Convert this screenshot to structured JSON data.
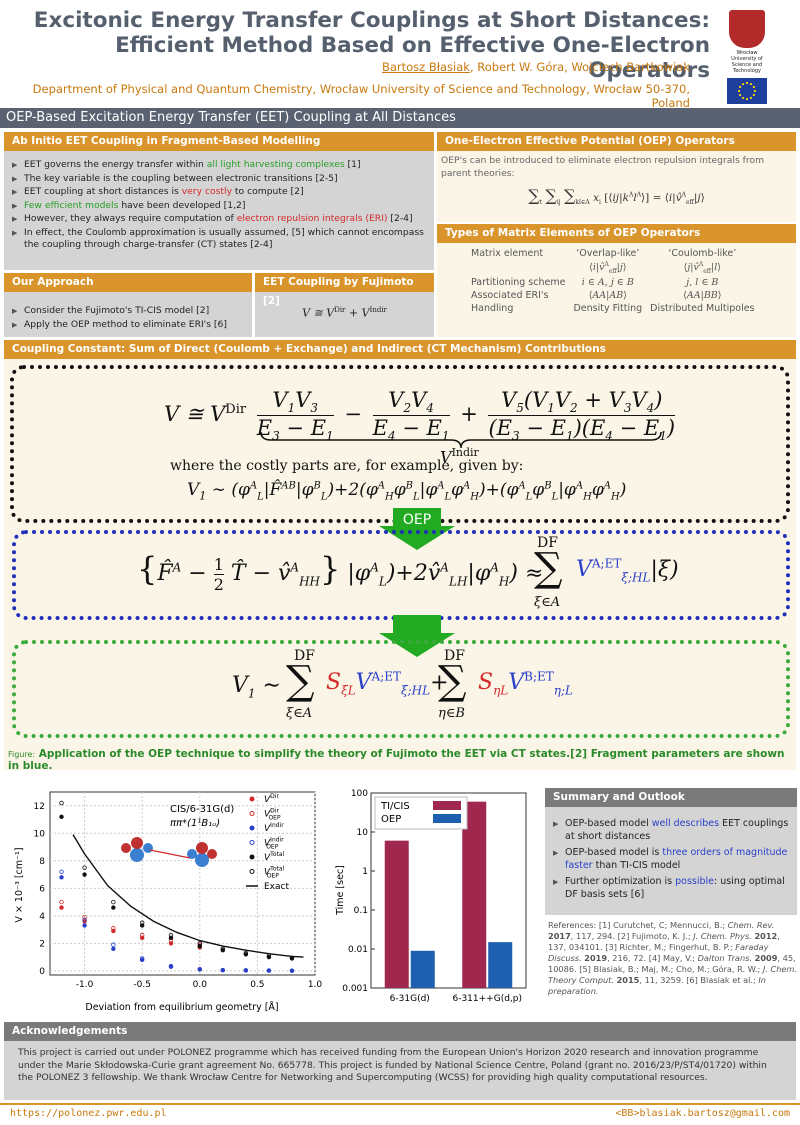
{
  "header": {
    "title_line1": "Excitonic Energy Transfer Couplings at Short Distances:",
    "title_line2": "Efficient Method Based on Effective One-Electron Operators",
    "author_first": "Bartosz Błasiak",
    "authors_rest": ", Robert W. Góra, Wojciech Bartkowiak",
    "affiliation": "Department of Physical and Quantum Chemistry, Wrocław University of Science and Technology, Wrocław 50-370, Poland",
    "logo_text": "Wrocław University of Science and Technology"
  },
  "banner": "OEP-Based Excitation Energy Transfer (EET) Coupling at All Distances",
  "ab_initio": {
    "title": "Ab Initio EET Coupling in Fragment-Based Modelling",
    "items": [
      {
        "pre": "EET governs the energy transfer within ",
        "hl": "all light harvesting complexes",
        "post": " [1]",
        "color": "#2aa02a"
      },
      {
        "pre": "The key variable is the coupling between electronic transitions [2-5]",
        "hl": "",
        "post": "",
        "color": ""
      },
      {
        "pre": "EET coupling at short distances is ",
        "hl": "very costly",
        "post": " to compute [2]",
        "color": "#d22a2a"
      },
      {
        "pre": "",
        "hl": "Few efficient models",
        "post": " have been developed [1,2]",
        "color": "#2aa02a"
      },
      {
        "pre": "However, they always require computation of ",
        "hl": "electron repulsion integrals (ERI)",
        "post": " [2-4]",
        "color": "#d22a2a"
      },
      {
        "pre": "In effect, the Coulomb approximation is usually assumed, [5] which cannot encompass the coupling through charge-transfer (CT) states [2-4]",
        "hl": "",
        "post": "",
        "color": ""
      }
    ]
  },
  "approach": {
    "title": "Our Approach",
    "items": [
      "Consider the Fujimoto's TI-CIS model [2]",
      "Apply the OEP method to eliminate ERI's [6]"
    ]
  },
  "fujimoto": {
    "title": "EET Coupling by Fujimoto [2]"
  },
  "oep": {
    "title": "One-Electron Effective Potential (OEP) Operators",
    "text": "OEP's can be introduced to eliminate electron repulsion integrals from parent theories:"
  },
  "matrix": {
    "title": "Types of Matrix Elements of OEP Operators",
    "col1": "‘Overlap-like’",
    "col2": "‘Coulomb-like’",
    "rows": [
      {
        "label": "Matrix element"
      },
      {
        "label": "Partitioning scheme"
      },
      {
        "label": "Associated ERI's"
      },
      {
        "label": "Handling",
        "c1": "Density Fitting",
        "c2": "Distributed Multipoles"
      }
    ]
  },
  "coupling": {
    "title": "Coupling Constant: Sum of Direct (Coulomb + Exchange) and Indirect (CT Mechanism) Contributions",
    "costly_text": "where the costly parts are, for example, given by:",
    "oep_label": "OEP"
  },
  "figcap": {
    "label": "Figure:",
    "text": "Application of the OEP technique to simplify the theory of Fujimoto the EET via CT states.[2] Fragment parameters are shown in blue."
  },
  "plot1": {
    "annot1": "CIS/6-31G(d)",
    "annot2": "ππ*(1¹B₁ᵤ)",
    "xlabel": "Deviation from equilibrium geometry [Å]",
    "ylabel": "V × 10⁻³ [cm⁻¹]",
    "legend": [
      "V^Dir",
      "V^Dir_OEP",
      "V^Indir",
      "V^Indir_OEP",
      "V^Total",
      "V^Total_OEP",
      "Exact"
    ]
  },
  "plot2": {
    "ylabel": "Time [sec]",
    "legend": [
      "TI/CIS",
      "OEP"
    ],
    "categories": [
      "6-31G(d)",
      "6-311++G(d,p)"
    ]
  },
  "chart_data": [
    {
      "type": "scatter",
      "xlabel": "Deviation from equilibrium geometry [Å]",
      "ylabel": "V × 10⁻³ [cm⁻¹]",
      "xlim": [
        -1.3,
        1.0
      ],
      "ylim": [
        -0.3,
        13
      ],
      "xticks": [
        -1.0,
        -0.5,
        0.0,
        0.5,
        1.0
      ],
      "yticks": [
        0,
        2,
        4,
        6,
        8,
        10,
        12
      ],
      "legend_position": "top-right",
      "series": [
        {
          "name": "V^Dir",
          "color": "#d22a2a",
          "marker": "filled",
          "x": [
            -1.2,
            -1.0,
            -0.75,
            -0.5,
            -0.25,
            0.0
          ],
          "y": [
            4.6,
            3.6,
            2.9,
            2.4,
            2.0,
            1.7
          ]
        },
        {
          "name": "V^Dir_OEP",
          "color": "#d22a2a",
          "marker": "open",
          "x": [
            -1.2,
            -1.0,
            -0.75,
            -0.5,
            -0.25,
            0.0
          ],
          "y": [
            5.0,
            3.9,
            3.1,
            2.6,
            2.2,
            1.9
          ]
        },
        {
          "name": "V^Indir",
          "color": "#2a40c8",
          "marker": "filled",
          "x": [
            -1.2,
            -1.0,
            -0.75,
            -0.5,
            -0.25,
            0.0,
            0.2,
            0.4,
            0.6,
            0.8
          ],
          "y": [
            6.8,
            3.3,
            1.6,
            0.8,
            0.3,
            0.1,
            0.05,
            0.03,
            0.02,
            0.01
          ]
        },
        {
          "name": "V^Indir_OEP",
          "color": "#2a40c8",
          "marker": "open",
          "x": [
            -1.2,
            -1.0,
            -0.75,
            -0.5,
            -0.25,
            0.0,
            0.2,
            0.4,
            0.6,
            0.8
          ],
          "y": [
            7.2,
            3.7,
            1.9,
            0.9,
            0.35,
            0.12,
            0.06,
            0.04,
            0.02,
            0.01
          ]
        },
        {
          "name": "V^Total",
          "color": "#111111",
          "marker": "filled",
          "x": [
            -1.2,
            -1.0,
            -0.75,
            -0.5,
            -0.25,
            0.0,
            0.2,
            0.4,
            0.6,
            0.8
          ],
          "y": [
            11.2,
            7.0,
            4.6,
            3.3,
            2.4,
            1.8,
            1.5,
            1.2,
            1.0,
            0.9
          ]
        },
        {
          "name": "V^Total_OEP",
          "color": "#111111",
          "marker": "open",
          "x": [
            -1.2,
            -1.0,
            -0.75,
            -0.5,
            -0.25,
            0.0,
            0.2,
            0.4,
            0.6,
            0.8
          ],
          "y": [
            12.2,
            7.5,
            5.0,
            3.5,
            2.6,
            2.0,
            1.6,
            1.3,
            1.1,
            0.95
          ]
        },
        {
          "name": "Exact",
          "color": "#111111",
          "marker": "line",
          "x": [
            -1.1,
            -1.0,
            -0.8,
            -0.6,
            -0.4,
            -0.2,
            0.0,
            0.2,
            0.4,
            0.6,
            0.8,
            0.9
          ],
          "y": [
            9.9,
            8.5,
            6.2,
            4.7,
            3.6,
            2.8,
            2.2,
            1.8,
            1.5,
            1.25,
            1.05,
            1.0
          ]
        }
      ]
    },
    {
      "type": "bar",
      "ylabel": "Time [sec]",
      "yscale": "log",
      "ylim": [
        0.001,
        100
      ],
      "yticks": [
        0.001,
        0.01,
        0.1,
        1,
        10,
        100
      ],
      "categories": [
        "6-31G(d)",
        "6-311++G(d,p)"
      ],
      "legend_position": "top-left",
      "series": [
        {
          "name": "TI/CIS",
          "color": "#a0284f",
          "values": [
            6,
            60
          ]
        },
        {
          "name": "OEP",
          "color": "#1f5fb0",
          "values": [
            0.009,
            0.015
          ]
        }
      ]
    }
  ],
  "summary": {
    "title": "Summary and Outlook",
    "items": [
      {
        "pre": "OEP-based model ",
        "hl": "well describes",
        "post": " EET couplings at short distances"
      },
      {
        "pre": "OEP-based model is ",
        "hl": "three orders of magnitude faster",
        "post": " than TI-CIS model"
      },
      {
        "pre": "Further optimization is ",
        "hl": "possible",
        "post": ": using optimal DF basis sets [6]"
      }
    ]
  },
  "refs": {
    "label": "References:",
    "r1": "[1] Curutchet, C; Mennucci, B.; ",
    "r1j": "Chem. Rev.",
    "r1y": "2017",
    "r1p": ", 117, 294. ",
    "r2": "[2] Fujimoto, K. J.; ",
    "r2j": "J. Chem. Phys.",
    "r2y": "2012",
    "r2p": ", 137, 034101. ",
    "r3": "[3] Richter, M.; Fingerhut, B. P.; ",
    "r3j": "Faraday Discuss.",
    "r3y": "2019",
    "r3p": ", 216, 72. ",
    "r4": "[4] May, V.; ",
    "r4j": "Dalton Trans.",
    "r4y": "2009",
    "r4p": ", 45, 10086. ",
    "r5": "[5] Blasiak, B.; Maj, M.; Cho, M.; Góra, R. W.; ",
    "r5j": "J. Chem. Theory Comput.",
    "r5y": "2015",
    "r5p": ", 11, 3259. ",
    "r6": "[6] Blasiak et al.; ",
    "r6j": "In preparation."
  },
  "ack": {
    "title": "Acknowledgements",
    "text": "This project is carried out under POLONEZ programme which has received funding from the European Union's Horizon 2020 research and innovation programme under the Marie Skłodowska-Curie grant agreement No. 665778. This project is funded by National Science Centre, Poland (grant no. 2016/23/P/ST4/01720) within the POLONEZ 3 fellowship. We thank Wrocław Centre for Networking and Supercomputing (WCSS) for providing high quality computational resources."
  },
  "footer": {
    "url": "https://polonez.pwr.edu.pl",
    "email": "<BB>blasiak.bartosz@gmail.com"
  }
}
